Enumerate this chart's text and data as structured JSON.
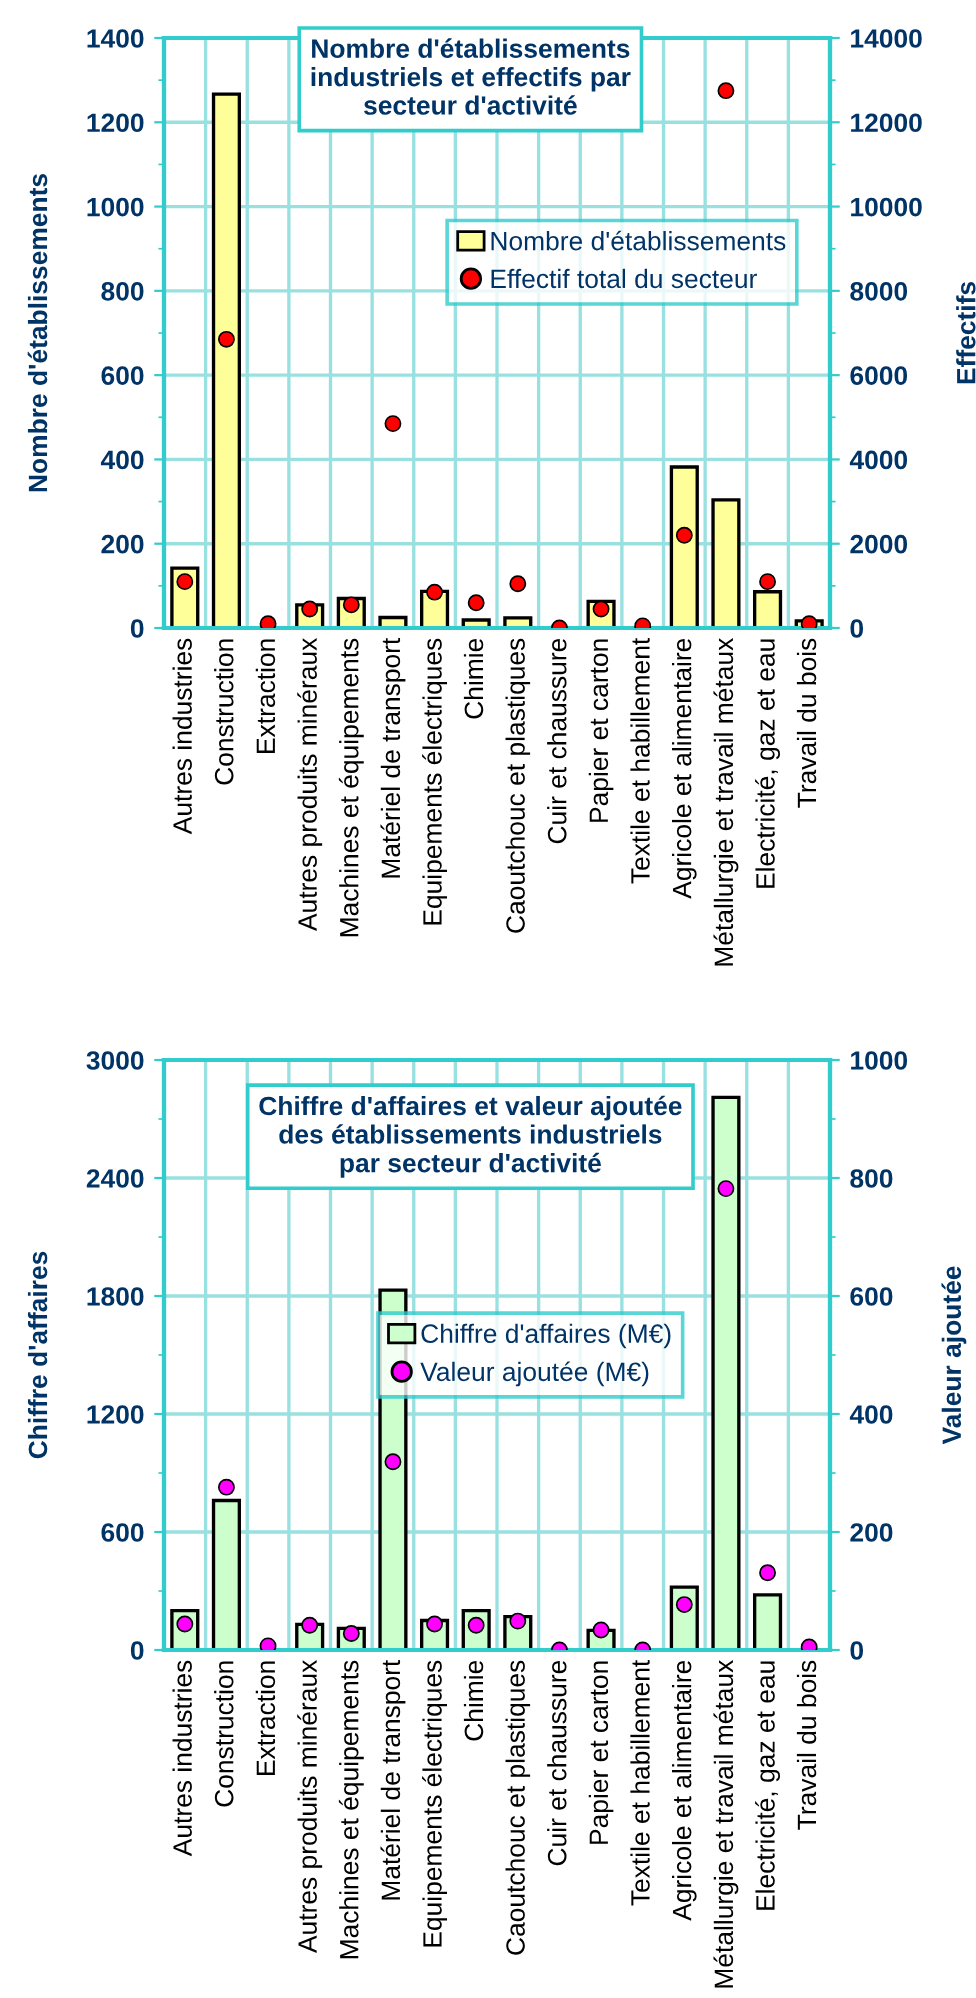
{
  "chart_data": [
    {
      "type": "bar",
      "title": "Nombre d'établissements\nindustriels et effectifs par\nsecteur d'activité",
      "ylabel": "Nombre d'établissements",
      "y2label": "Effectifs",
      "categories": [
        "Autres industries",
        "Construction",
        "Extraction",
        "Autres produits minéraux",
        "Machines et équipements",
        "Matériel de transport",
        "Equipements électriques",
        "Chimie",
        "Caoutchouc et plastiques",
        "Cuir et chaussure",
        "Papier et carton",
        "Textile et habillement",
        "Agricole et alimentaire",
        "Métallurgie et travail métaux",
        "Electricité, gaz et eau",
        "Travail du bois"
      ],
      "series": [
        {
          "name": "Nombre d'établissements",
          "color": "#ffff99",
          "values": [
            142,
            1267,
            null,
            55,
            70,
            25,
            87,
            19,
            24,
            null,
            63,
            null,
            382,
            304,
            86,
            17
          ]
        },
        {
          "name": "Effectif total du secteur",
          "type": "scatter",
          "axis": "y2",
          "color": "#ff0000",
          "values": [
            1100,
            6850,
            100,
            450,
            550,
            4850,
            850,
            600,
            1050,
            0,
            450,
            50,
            2200,
            12750,
            1100,
            100
          ]
        }
      ],
      "ylim": [
        0,
        1400
      ],
      "yticks": [
        0,
        200,
        400,
        600,
        800,
        1000,
        1200,
        1400
      ],
      "y2lim": [
        0,
        14000
      ],
      "y2ticks": [
        0,
        2000,
        4000,
        6000,
        8000,
        10000,
        12000,
        14000
      ],
      "grid": true,
      "legend": "right",
      "marker": "circle"
    },
    {
      "type": "bar",
      "title": "Chiffre d'affaires et valeur ajoutée\ndes établissements industriels\npar secteur d'activité",
      "ylabel": "Chiffre d'affaires",
      "y2label": "Valeur ajoutée",
      "categories": [
        "Autres industries",
        "Construction",
        "Extraction",
        "Autres produits minéraux",
        "Machines et équipements",
        "Matériel de transport",
        "Equipements électriques",
        "Chimie",
        "Caoutchouc et plastiques",
        "Cuir et chaussure",
        "Papier et carton",
        "Textile et habillement",
        "Agricole et alimentaire",
        "Métallurgie et travail métaux",
        "Electricité, gaz et eau",
        "Travail du bois"
      ],
      "series": [
        {
          "name": "Chiffre d'affaires (M€)",
          "color": "#ccffcc",
          "values": [
            200,
            760,
            null,
            130,
            110,
            1830,
            150,
            200,
            170,
            null,
            100,
            null,
            320,
            2810,
            280,
            null
          ]
        },
        {
          "name": "Valeur ajoutée (M€)",
          "type": "scatter",
          "axis": "y2",
          "color": "#ff00ff",
          "values": [
            44,
            276,
            7,
            42,
            28,
            319,
            44,
            42,
            49,
            0,
            34,
            0,
            77,
            782,
            131,
            5
          ]
        }
      ],
      "ylim": [
        0,
        3000
      ],
      "yticks": [
        0,
        600,
        1200,
        1800,
        2400,
        3000
      ],
      "y2lim": [
        0,
        1000
      ],
      "y2ticks": [
        0,
        200,
        400,
        600,
        800,
        1000
      ],
      "grid": true,
      "legend": "center",
      "marker": "circle"
    }
  ]
}
